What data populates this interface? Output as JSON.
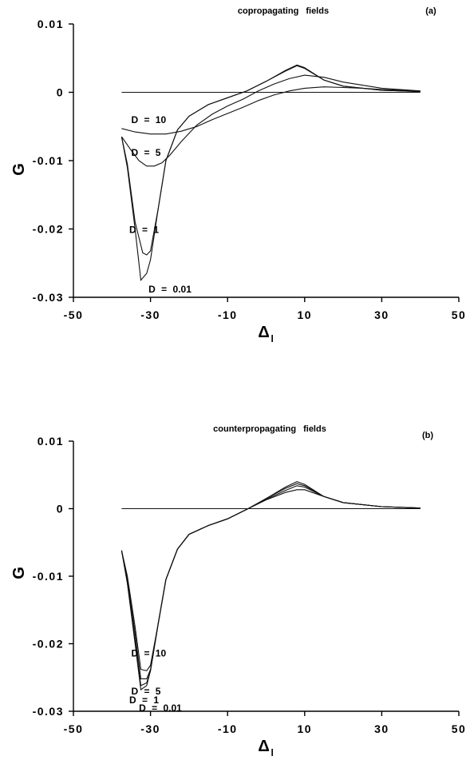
{
  "chart_data": [
    {
      "type": "line",
      "title": "copropagating fields",
      "panel_label": "(a)",
      "xlabel": "Δ",
      "xlabel_sub": "l",
      "ylabel": "G",
      "xlim": [
        -50,
        50
      ],
      "ylim": [
        -0.03,
        0.01
      ],
      "xticks": [
        -50,
        -30,
        -10,
        10,
        30,
        50
      ],
      "xtick_labels": [
        "-50",
        "-30",
        "-10",
        "10",
        "30",
        "50"
      ],
      "yticks": [
        0.01,
        0,
        -0.01,
        -0.02,
        -0.03
      ],
      "ytick_labels": [
        "0.01",
        "0",
        "-0.01",
        "-0.02",
        "-0.03"
      ],
      "grid": false,
      "series": [
        {
          "name": "D = 0.01",
          "x": [
            -37.5,
            -36,
            -34,
            -32.5,
            -31,
            -30,
            -28,
            -26,
            -23,
            -20,
            -15,
            -10,
            -5,
            0,
            5,
            8,
            10,
            15,
            20,
            30,
            40
          ],
          "y": [
            -0.0065,
            -0.011,
            -0.02,
            -0.0275,
            -0.0265,
            -0.0245,
            -0.017,
            -0.01,
            -0.0055,
            -0.0035,
            -0.0018,
            -0.0008,
            0.0002,
            0.0016,
            0.0032,
            0.004,
            0.0036,
            0.0018,
            0.0009,
            0.0003,
            0.0001
          ]
        },
        {
          "name": "D = 1",
          "x": [
            -37.5,
            -36,
            -34,
            -32,
            -31,
            -30,
            -28,
            -26,
            -23,
            -20,
            -15,
            -10,
            -5,
            0,
            5,
            8,
            10,
            15,
            20,
            30,
            40
          ],
          "y": [
            -0.0065,
            -0.0105,
            -0.019,
            -0.0235,
            -0.0238,
            -0.0232,
            -0.017,
            -0.01,
            -0.0055,
            -0.0035,
            -0.0018,
            -0.0008,
            0.0002,
            0.0016,
            0.0031,
            0.0039,
            0.0035,
            0.0018,
            0.0009,
            0.0003,
            0.0001
          ]
        },
        {
          "name": "D = 5",
          "x": [
            -37.5,
            -35,
            -33,
            -31,
            -29,
            -27,
            -25,
            -22,
            -18,
            -14,
            -10,
            -6,
            -2,
            2,
            6,
            10,
            15,
            20,
            30,
            40
          ],
          "y": [
            -0.0065,
            -0.0085,
            -0.01,
            -0.0108,
            -0.0108,
            -0.0103,
            -0.0092,
            -0.0072,
            -0.0048,
            -0.0032,
            -0.002,
            -0.001,
            0.0002,
            0.0012,
            0.002,
            0.0025,
            0.0022,
            0.0015,
            0.0006,
            0.0002
          ]
        },
        {
          "name": "D = 10",
          "x": [
            -37.5,
            -34,
            -30,
            -26,
            -22,
            -18,
            -14,
            -10,
            -6,
            -2,
            2,
            6,
            10,
            15,
            20,
            25,
            30,
            35,
            40
          ],
          "y": [
            -0.0053,
            -0.0058,
            -0.0061,
            -0.0061,
            -0.0057,
            -0.005,
            -0.004,
            -0.0031,
            -0.0022,
            -0.0012,
            -0.0004,
            0.0002,
            0.0006,
            0.0008,
            0.0007,
            0.0006,
            0.0004,
            0.0003,
            0.0002
          ]
        },
        {
          "name": "",
          "x": [
            -37.5,
            40
          ],
          "y": [
            0,
            0
          ]
        }
      ]
    },
    {
      "type": "line",
      "title": "counterpropagating fields",
      "panel_label": "(b)",
      "xlabel": "Δ",
      "xlabel_sub": "l",
      "ylabel": "G",
      "xlim": [
        -50,
        50
      ],
      "ylim": [
        -0.03,
        0.01
      ],
      "xticks": [
        -50,
        -30,
        -10,
        10,
        30,
        50
      ],
      "xtick_labels": [
        "-50",
        "-30",
        "-10",
        "10",
        "30",
        "50"
      ],
      "yticks": [
        0.01,
        0,
        -0.01,
        -0.02,
        -0.03
      ],
      "ytick_labels": [
        "0.01",
        "0",
        "-0.01",
        "-0.02",
        "-0.03"
      ],
      "grid": false,
      "series": [
        {
          "name": "D = 0.01",
          "x": [
            -37.5,
            -36,
            -34,
            -32.5,
            -31,
            -30,
            -28,
            -26,
            -23,
            -20,
            -15,
            -10,
            -5,
            0,
            5,
            8,
            10,
            15,
            20,
            30,
            40
          ],
          "y": [
            -0.0062,
            -0.011,
            -0.02,
            -0.0268,
            -0.0262,
            -0.024,
            -0.017,
            -0.0105,
            -0.006,
            -0.0038,
            -0.0025,
            -0.0015,
            -0.0001,
            0.0015,
            0.0032,
            0.004,
            0.0036,
            0.0018,
            0.0009,
            0.0003,
            0.0001
          ]
        },
        {
          "name": "D = 1",
          "x": [
            -37.5,
            -36,
            -34,
            -32.5,
            -31,
            -30,
            -28,
            -26,
            -23,
            -20,
            -15,
            -10,
            -5,
            0,
            5,
            8,
            10,
            15,
            20,
            30,
            40
          ],
          "y": [
            -0.0062,
            -0.011,
            -0.0195,
            -0.0262,
            -0.0258,
            -0.024,
            -0.017,
            -0.0105,
            -0.006,
            -0.0038,
            -0.0025,
            -0.0015,
            -0.0001,
            0.0015,
            0.003,
            0.0037,
            0.0034,
            0.0018,
            0.0009,
            0.0003,
            0.0001
          ]
        },
        {
          "name": "D = 5",
          "x": [
            -37.5,
            -36,
            -34,
            -32.5,
            -31,
            -30,
            -28,
            -26,
            -23,
            -20,
            -15,
            -10,
            -5,
            0,
            5,
            8,
            10,
            15,
            20,
            30,
            40
          ],
          "y": [
            -0.0062,
            -0.0105,
            -0.0185,
            -0.0252,
            -0.0252,
            -0.0238,
            -0.017,
            -0.0105,
            -0.006,
            -0.0038,
            -0.0025,
            -0.0015,
            -0.0001,
            0.0014,
            0.0027,
            0.0034,
            0.0032,
            0.0018,
            0.0009,
            0.0003,
            0.0001
          ]
        },
        {
          "name": "D = 10",
          "x": [
            -37.5,
            -36,
            -34,
            -32.5,
            -31,
            -30,
            -28,
            -26,
            -23,
            -20,
            -15,
            -10,
            -5,
            0,
            5,
            8,
            10,
            15,
            20,
            30,
            40
          ],
          "y": [
            -0.0062,
            -0.01,
            -0.0175,
            -0.0238,
            -0.024,
            -0.0232,
            -0.017,
            -0.0105,
            -0.006,
            -0.0038,
            -0.0025,
            -0.0015,
            -0.0001,
            0.0013,
            0.0024,
            0.0028,
            0.0028,
            0.0018,
            0.0009,
            0.0003,
            0.0001
          ]
        },
        {
          "name": "",
          "x": [
            -37.5,
            40
          ],
          "y": [
            0,
            0
          ]
        }
      ]
    }
  ]
}
